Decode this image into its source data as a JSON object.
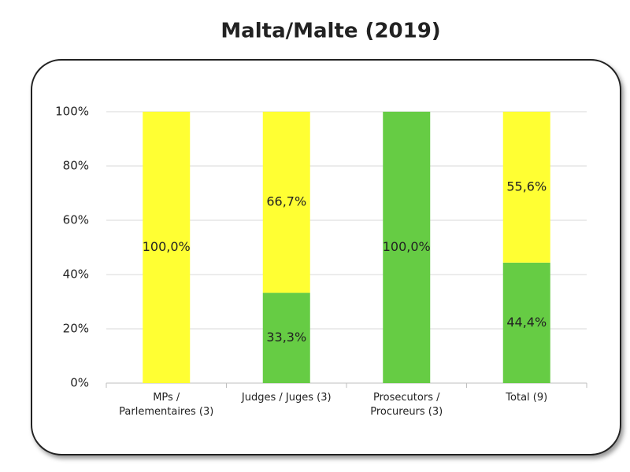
{
  "chart_data": {
    "type": "stacked-bar",
    "title": "Malta/Malte (2019)",
    "categories": [
      "MPs /\nParlementaires (3)",
      "Judges / Juges (3)",
      "Prosecutors  /\nProcureurs (3)",
      "Total (9)"
    ],
    "series": [
      {
        "color": "#66cc44",
        "values": [
          0,
          33.3,
          100,
          44.4
        ],
        "value_labels": [
          null,
          "33,3%",
          "100,0%",
          "44,4%"
        ]
      },
      {
        "color": "#ffff33",
        "values": [
          100,
          66.7,
          0,
          55.6
        ],
        "value_labels": [
          "100,0%",
          "66,7%",
          null,
          "55,6%"
        ]
      }
    ],
    "ylim": [
      0,
      100
    ],
    "yticks": [
      {
        "value": 0,
        "label": "0%"
      },
      {
        "value": 20,
        "label": "20%"
      },
      {
        "value": 40,
        "label": "40%"
      },
      {
        "value": 60,
        "label": "60%"
      },
      {
        "value": 80,
        "label": "80%"
      },
      {
        "value": 100,
        "label": "100%"
      }
    ],
    "grid": true
  }
}
